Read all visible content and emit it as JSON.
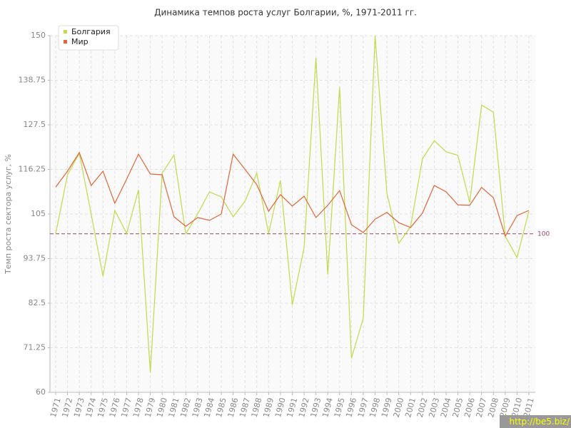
{
  "chart_data": {
    "type": "line",
    "title": "Динамика темпов роста услуг Болгарии, %, 1971-2011 гг.",
    "y_label": "Темп роста сектора услуг, %",
    "categories": [
      "1971",
      "1972",
      "1973",
      "1974",
      "1975",
      "1976",
      "1977",
      "1978",
      "1979",
      "1980",
      "1981",
      "1982",
      "1983",
      "1984",
      "1985",
      "1986",
      "1987",
      "1988",
      "1989",
      "1990",
      "1991",
      "1992",
      "1993",
      "1994",
      "1995",
      "1996",
      "1997",
      "1998",
      "1999",
      "2000",
      "2001",
      "2002",
      "2003",
      "2004",
      "2005",
      "2006",
      "2007",
      "2008",
      "2009",
      "2010",
      "2011"
    ],
    "series": [
      {
        "name": "Болгария",
        "color": "#c2d94a",
        "values": [
          100,
          114.9,
          120.3,
          105,
          89.3,
          105.9,
          100.1,
          111.1,
          65,
          115.3,
          119.9,
          100,
          105,
          110.6,
          109.3,
          104.3,
          108.2,
          115.3,
          100.1,
          113.5,
          82.1,
          96.5,
          144.4,
          89.7,
          137,
          68.6,
          78.7,
          150,
          110.2,
          97.6,
          101.8,
          118.9,
          123.5,
          120.7,
          119.8,
          107.9,
          132.5,
          130.7,
          99.4,
          94,
          105.7
        ]
      },
      {
        "name": "Мир",
        "color": "#e0663a",
        "values": [
          111.8,
          115.8,
          120.5,
          112.2,
          115.8,
          107.7,
          113.8,
          120.1,
          115.1,
          114.9,
          104.3,
          101.9,
          104.1,
          103.4,
          105,
          120.1,
          116.3,
          112.4,
          105.7,
          109.9,
          107,
          109.5,
          104.1,
          107.2,
          110.9,
          102.3,
          100.3,
          103.7,
          105.4,
          102.8,
          101.6,
          105.2,
          112.2,
          110.6,
          107.3,
          107.2,
          111.7,
          109.1,
          99.4,
          104.6,
          105.9
        ]
      }
    ],
    "ylim": [
      60,
      150
    ],
    "yticks": [
      60,
      71.25,
      82.5,
      93.75,
      105,
      116.25,
      127.5,
      138.75,
      150
    ],
    "hlines": [
      100
    ],
    "grid": true,
    "legend": "top-left"
  },
  "watermark": "http://be5.biz/"
}
